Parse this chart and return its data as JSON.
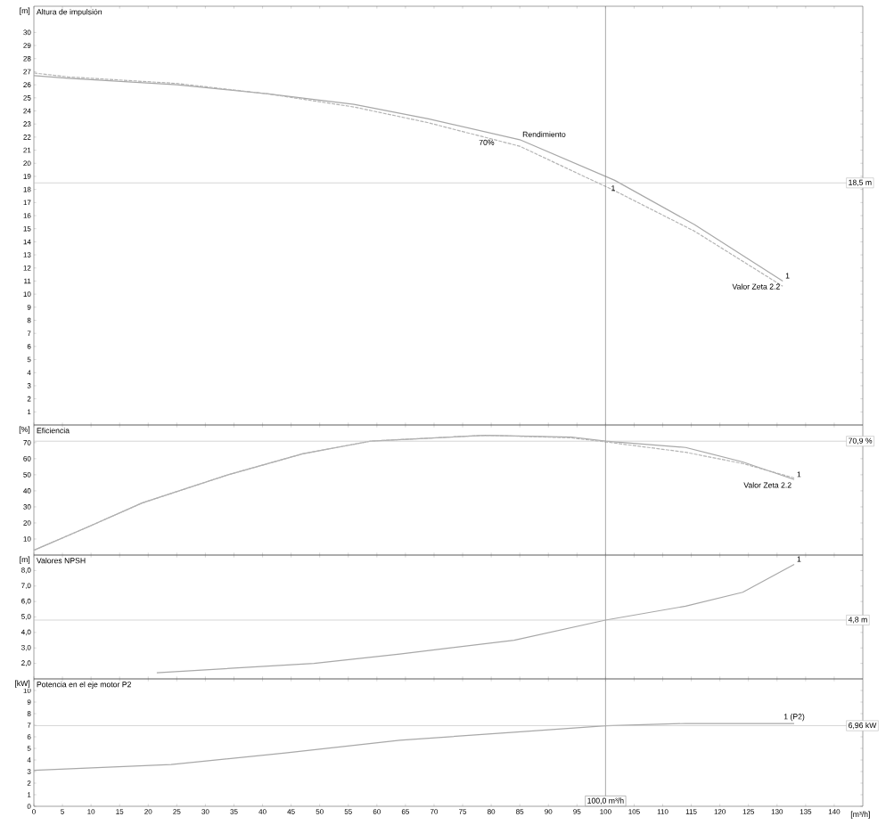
{
  "chart_data": [
    {
      "type": "line",
      "title": "Altura de impulsión",
      "ylabel": "[m]",
      "xlim": [
        0,
        145
      ],
      "ylim": [
        0,
        32
      ],
      "tick_labels": "y",
      "xticks": [
        0,
        5,
        10,
        15,
        20,
        25,
        30,
        35,
        40,
        45,
        50,
        55,
        60,
        65,
        70,
        75,
        80,
        85,
        90,
        95,
        100,
        105,
        110,
        115,
        120,
        125,
        130,
        135,
        140
      ],
      "yticks": [
        1,
        2,
        3,
        4,
        5,
        6,
        7,
        8,
        9,
        10,
        11,
        12,
        13,
        14,
        15,
        16,
        17,
        18,
        19,
        20,
        21,
        22,
        23,
        24,
        25,
        26,
        27,
        28,
        29,
        30
      ],
      "x": [
        0,
        6,
        25,
        41,
        56,
        69,
        85,
        101.6,
        115.6,
        131
      ],
      "series": [
        {
          "color": "#a8a8a8",
          "line_style": "solid",
          "values": [
            26.7,
            26.5,
            26.0,
            25.3,
            24.5,
            23.4,
            21.8,
            18.7,
            15.3,
            11.0
          ]
        },
        {
          "color": "#b4b4b4",
          "line_style": "dashed",
          "values": [
            26.9,
            26.6,
            26.1,
            25.3,
            24.3,
            23.1,
            21.3,
            17.9,
            14.8,
            10.6
          ]
        }
      ],
      "ref_lines": [
        {
          "axis": "x",
          "value": 100,
          "color": "#808080"
        },
        {
          "axis": "y",
          "value": 18.5,
          "label": "18,5 m",
          "color": "#c0c0c0"
        }
      ],
      "annotations": [
        {
          "text": "70%",
          "x": 81,
          "y": 22
        },
        {
          "text": "Rendimiento",
          "x": 85,
          "y": 21.8
        },
        {
          "text": "Valor Zeta 2.2",
          "x": 131,
          "y": 11
        },
        {
          "text": "1",
          "x": 131,
          "y": 11
        },
        {
          "text": "1",
          "x": 100.5,
          "y": 18.5
        }
      ]
    },
    {
      "type": "line",
      "title": "Eficiencia",
      "ylabel": "[%]",
      "xlim": [
        0,
        145
      ],
      "ylim": [
        0,
        81
      ],
      "tick_labels": "y",
      "xticks": [
        0,
        5,
        10,
        15,
        20,
        25,
        30,
        35,
        40,
        45,
        50,
        55,
        60,
        65,
        70,
        75,
        80,
        85,
        90,
        95,
        100,
        105,
        110,
        115,
        120,
        125,
        130,
        135,
        140
      ],
      "yticks": [
        10,
        20,
        30,
        40,
        50,
        60,
        70
      ],
      "x": [
        0,
        9,
        19,
        34,
        47,
        59,
        79,
        94,
        100,
        114,
        124,
        133
      ],
      "series": [
        {
          "color": "#a8a8a8",
          "line_style": "solid",
          "values": [
            3,
            16.8,
            32.5,
            50,
            63,
            71,
            74.6,
            73.5,
            71,
            67,
            58,
            47
          ]
        },
        {
          "color": "#b4b4b4",
          "line_style": "dashed",
          "values": [
            3,
            16.8,
            32.5,
            50,
            63,
            71,
            74.6,
            73,
            70.5,
            64,
            57,
            48
          ]
        }
      ],
      "ref_lines": [
        {
          "axis": "x",
          "value": 100,
          "color": "#808080"
        },
        {
          "axis": "y",
          "value": 70.9,
          "label": "70,9 %",
          "color": "#c0c0c0"
        }
      ],
      "annotations": [
        {
          "text": "Valor Zeta 2.2",
          "x": 133,
          "y": 47
        },
        {
          "text": "1",
          "x": 133,
          "y": 47
        }
      ]
    },
    {
      "type": "line",
      "title": "Valores NPSH",
      "ylabel": "[m]",
      "xlim": [
        0,
        145
      ],
      "ylim": [
        1,
        9
      ],
      "tick_labels": "y",
      "xticks": [
        0,
        5,
        10,
        15,
        20,
        25,
        30,
        35,
        40,
        45,
        50,
        55,
        60,
        65,
        70,
        75,
        80,
        85,
        90,
        95,
        100,
        105,
        110,
        115,
        120,
        125,
        130,
        135,
        140
      ],
      "yticks": [
        {
          "value": 2,
          "label": "2,0"
        },
        {
          "value": 3,
          "label": "3,0"
        },
        {
          "value": 4,
          "label": "4,0"
        },
        {
          "value": 5,
          "label": "5,0"
        },
        {
          "value": 6,
          "label": "6,0"
        },
        {
          "value": 7,
          "label": "7,0"
        },
        {
          "value": 8,
          "label": "8,0"
        }
      ],
      "x": [
        21.5,
        49,
        64,
        84,
        100,
        114,
        124,
        133
      ],
      "series": [
        {
          "color": "#a8a8a8",
          "line_style": "solid",
          "values": [
            1.4,
            2.0,
            2.6,
            3.5,
            4.8,
            5.7,
            6.6,
            8.4
          ]
        }
      ],
      "ref_lines": [
        {
          "axis": "x",
          "value": 100,
          "color": "#808080"
        },
        {
          "axis": "y",
          "value": 4.8,
          "label": "4,8 m",
          "color": "#c0c0c0"
        }
      ],
      "annotations": [
        {
          "text": "1",
          "x": 133,
          "y": 8.4
        }
      ]
    },
    {
      "type": "line",
      "title": "Potencia en el eje motor P2",
      "ylabel": "[kW]",
      "xlabel": "[m³/h]",
      "xlim": [
        0,
        145
      ],
      "ylim": [
        0,
        11
      ],
      "xticks": [
        0,
        5,
        10,
        15,
        20,
        25,
        30,
        35,
        40,
        45,
        50,
        55,
        60,
        65,
        70,
        75,
        80,
        85,
        90,
        95,
        100,
        105,
        110,
        115,
        120,
        125,
        130,
        135,
        140
      ],
      "yticks": [
        0,
        1,
        2,
        3,
        4,
        5,
        6,
        7,
        8,
        9,
        10
      ],
      "x": [
        0,
        24,
        44,
        64,
        84,
        100,
        114,
        133
      ],
      "series": [
        {
          "color": "#a8a8a8",
          "line_style": "solid",
          "values": [
            3.1,
            3.6,
            4.6,
            5.7,
            6.4,
            6.96,
            7.15,
            7.15
          ]
        }
      ],
      "ref_lines": [
        {
          "axis": "x",
          "value": 100,
          "label": "100,0 m³/h",
          "color": "#808080"
        },
        {
          "axis": "y",
          "value": 6.96,
          "label": "6,96 kW",
          "color": "#c0c0c0"
        }
      ],
      "annotations": [
        {
          "text": "1 (P2)",
          "x": 133,
          "y": 7.15
        }
      ]
    }
  ]
}
